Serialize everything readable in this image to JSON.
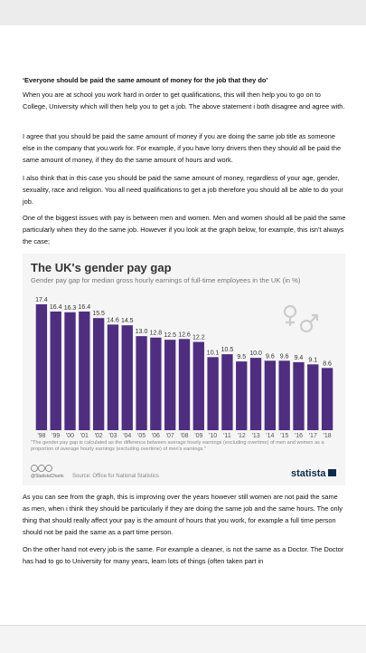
{
  "document": {
    "heading": "‘Everyone should be paid the same amount of money for the job that they do’",
    "paragraphs": [
      "When you are at school you work hard in order to get qualifications, this will then help you to go on to College, University which will then help you to get a job.  The above statement i both disagree and agree with.",
      "I agree that you should be paid the same amount of money if you are doing the same job title as someone else in the company that you work for.  For example, if you have lorry drivers then they should all be paid the same amount of money, if they do the same amount of hours and work.",
      "I also think that in this case you should be paid the same amount of money, regardless of your age, gender, sexuality, race and religion.  You all need qualifications to get a job therefore you should all be able to do your job.",
      "One of the biggest issues with pay is between men and women.  Men and women should all be paid the same particularly when they do the same job.  However if you look at the graph below, for example, this isn’t always the case;"
    ],
    "after_chart": [
      "As you can see from the graph, this is improving over the years however still women are not paid the same as men, when i think they should be particularly if they are doing the same job and the same hours.  The only thing that should really affect your pay is the amount of hours that you work, for example a full time person should not be paid the same as a part time person.",
      "On the other hand not every job is the same.  For example a cleaner, is not the same as a Doctor.  The Doctor has had to go to University for many years, learn lots of things (often taken part in"
    ]
  },
  "chart_data": {
    "type": "bar",
    "title": "The UK's gender pay gap",
    "subtitle": "Gender pay gap for median gross hourly earnings of full-time employees in the UK (in %)",
    "categories": [
      "'98",
      "'99",
      "'00",
      "'01",
      "'02",
      "'03",
      "'04",
      "'05",
      "'06",
      "'07",
      "'08",
      "'09",
      "'10",
      "'11",
      "'12",
      "'13",
      "'14",
      "'15",
      "'16",
      "'17",
      "'18"
    ],
    "values": [
      17.4,
      16.4,
      16.3,
      16.4,
      15.5,
      14.6,
      14.5,
      13.0,
      12.8,
      12.5,
      12.6,
      12.2,
      10.1,
      10.5,
      9.5,
      10.0,
      9.6,
      9.6,
      9.4,
      9.1,
      8.6
    ],
    "value_labels": [
      "17.4",
      "16.4",
      "16.3",
      "16.4",
      "15.5",
      "14.6",
      "14.5",
      "13.0",
      "12.8",
      "12.5",
      "12.6",
      "12.2",
      "10.1",
      "10.5",
      "9.5",
      "10.0",
      "9.6",
      "9.6",
      "9.4",
      "9.1",
      "8.6"
    ],
    "color": "#4f2d7f",
    "note": "\"The gender pay gap is calculated as the difference between average hourly earnings (excluding overtime) of men and women as a proportion of average hourly earnings (excluding overtime) of men's earnings.\"",
    "handle": "@StatistaCharts",
    "source": "Source: Office for National Statistics",
    "brand": "statista"
  }
}
